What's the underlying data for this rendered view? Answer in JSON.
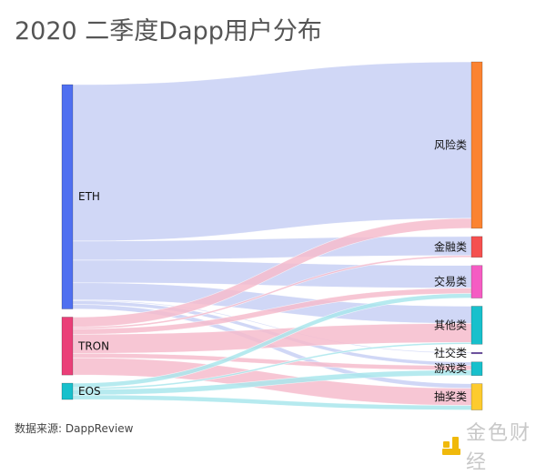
{
  "title": "2020 二季度Dapp用户分布",
  "source_note": "数据来源: DappReview",
  "watermark": {
    "icon": "jinse-logo-icon",
    "text": "金色财经",
    "color": "#f0b90b"
  },
  "chart_data": {
    "type": "sankey",
    "title": "2020 二季度Dapp用户分布",
    "unit": "relative share (estimated from band widths)",
    "sources": [
      {
        "name": "ETH",
        "color": "#4f6ff0",
        "link_color": "#c8d0f5"
      },
      {
        "name": "TRON",
        "color": "#ea3f78",
        "link_color": "#f6bccd"
      },
      {
        "name": "EOS",
        "color": "#18c0cc",
        "link_color": "#a9e6ec"
      }
    ],
    "targets": [
      {
        "name": "风险类",
        "color": "#fb8331"
      },
      {
        "name": "金融类",
        "color": "#f5504f"
      },
      {
        "name": "交易类",
        "color": "#f55cc3"
      },
      {
        "name": "其他类",
        "color": "#18c0cc"
      },
      {
        "name": "社交类",
        "color": "#6a3fb5"
      },
      {
        "name": "游戏类",
        "color": "#18c0cc"
      },
      {
        "name": "抽奖类",
        "color": "#fdcb2e"
      }
    ],
    "links": [
      {
        "source": "ETH",
        "target": "风险类",
        "value": 173
      },
      {
        "source": "ETH",
        "target": "金融类",
        "value": 21
      },
      {
        "source": "ETH",
        "target": "交易类",
        "value": 25
      },
      {
        "source": "ETH",
        "target": "其他类",
        "value": 19
      },
      {
        "source": "ETH",
        "target": "社交类",
        "value": 1
      },
      {
        "source": "ETH",
        "target": "游戏类",
        "value": 4
      },
      {
        "source": "ETH",
        "target": "抽奖类",
        "value": 5
      },
      {
        "source": "TRON",
        "target": "风险类",
        "value": 11
      },
      {
        "source": "TRON",
        "target": "金融类",
        "value": 2
      },
      {
        "source": "TRON",
        "target": "交易类",
        "value": 6
      },
      {
        "source": "TRON",
        "target": "其他类",
        "value": 21
      },
      {
        "source": "TRON",
        "target": "游戏类",
        "value": 5
      },
      {
        "source": "TRON",
        "target": "抽奖类",
        "value": 19
      },
      {
        "source": "EOS",
        "target": "交易类",
        "value": 5
      },
      {
        "source": "EOS",
        "target": "其他类",
        "value": 2
      },
      {
        "source": "EOS",
        "target": "游戏类",
        "value": 6
      },
      {
        "source": "EOS",
        "target": "抽奖类",
        "value": 5
      }
    ]
  }
}
